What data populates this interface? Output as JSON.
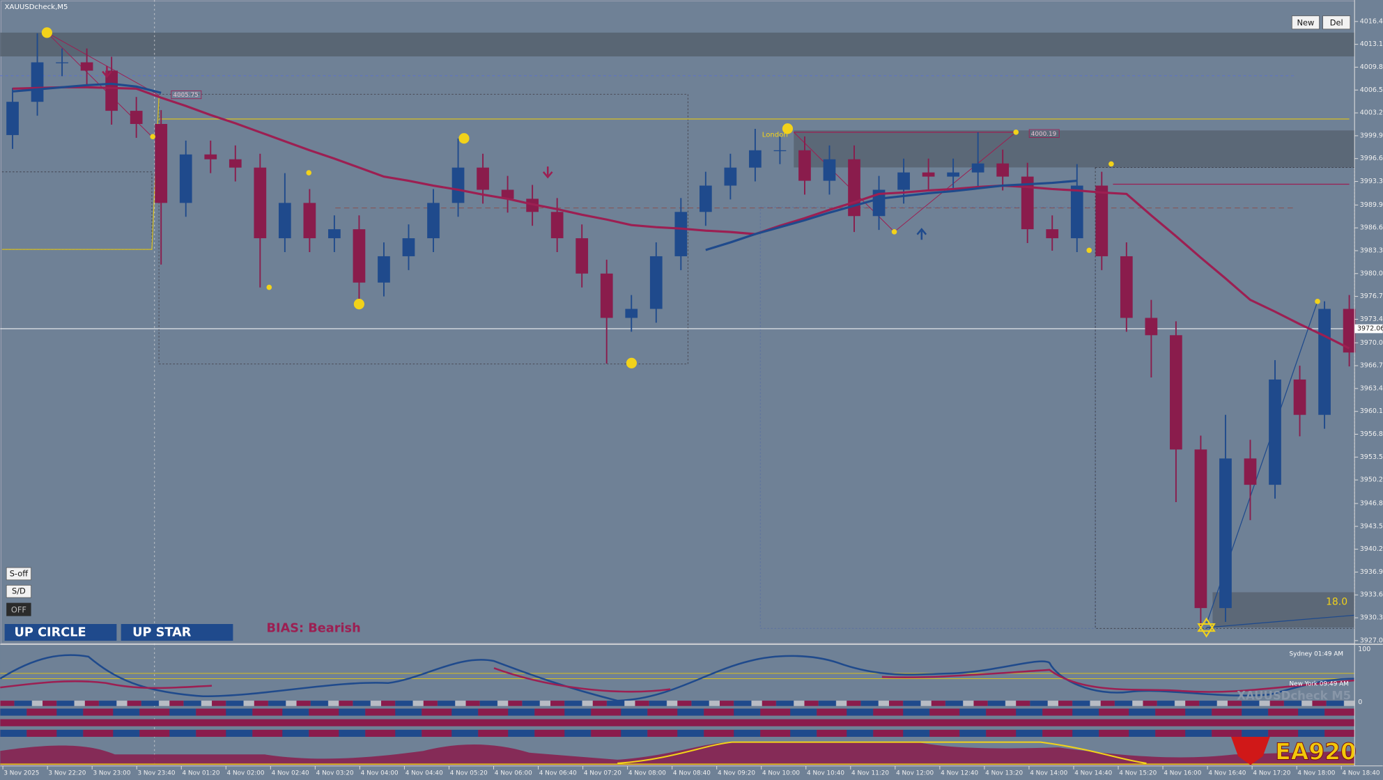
{
  "window": {
    "title": "XAUUSDcheck,M5",
    "new_button": "New",
    "del_button": "Del",
    "s_off": "S-off",
    "s_d": "S/D",
    "off": "OFF",
    "up_circle": "UP CIRCLE",
    "up_star": "UP STAR",
    "bias": "BIAS: Bearish",
    "box_value": "18.0",
    "price_tags": [
      "4005.75",
      "4000.19"
    ],
    "session_label": "London",
    "current_price": "3972.06",
    "sessions": [
      "Sydney 01:49 AM",
      "New York 09:49 AM"
    ],
    "watermark": "XAUUSDcheck M5",
    "logo": "EA920",
    "sub_axis": [
      "100",
      "0"
    ]
  },
  "chart_data": {
    "type": "candlestick",
    "up_color": "#1f4a8c",
    "down_color": "#8a1c4c",
    "ylim": [
      3926.6,
      4019.5
    ],
    "yticks": [
      {
        "value": 4016.4,
        "label": "4016.40"
      },
      {
        "value": 4013.1,
        "label": "4013.10"
      },
      {
        "value": 4009.8,
        "label": "4009.80"
      },
      {
        "value": 4006.5,
        "label": "4006.50"
      },
      {
        "value": 4003.2,
        "label": "4003.20"
      },
      {
        "value": 3999.9,
        "label": "3999.90"
      },
      {
        "value": 3996.6,
        "label": "3996.60"
      },
      {
        "value": 3993.3,
        "label": "3993.30"
      },
      {
        "value": 3989.9,
        "label": "3989.90"
      },
      {
        "value": 3986.6,
        "label": "3986.60"
      },
      {
        "value": 3983.3,
        "label": "3983.30"
      },
      {
        "value": 3980,
        "label": "3980.00"
      },
      {
        "value": 3976.7,
        "label": "3976.70"
      },
      {
        "value": 3973.4,
        "label": "3973.40"
      },
      {
        "value": 3970,
        "label": "3970.00"
      },
      {
        "value": 3966.7,
        "label": "3966.70"
      },
      {
        "value": 3963.4,
        "label": "3963.40"
      },
      {
        "value": 3960.1,
        "label": "3960.10"
      },
      {
        "value": 3956.8,
        "label": "3956.80"
      },
      {
        "value": 3953.5,
        "label": "3953.50"
      },
      {
        "value": 3950.2,
        "label": "3950.20"
      },
      {
        "value": 3946.8,
        "label": "3946.80"
      },
      {
        "value": 3943.5,
        "label": "3943.50"
      },
      {
        "value": 3940.2,
        "label": "3940.20"
      },
      {
        "value": 3936.9,
        "label": "3936.90"
      },
      {
        "value": 3933.6,
        "label": "3933.60"
      },
      {
        "value": 3930.3,
        "label": "3930.30"
      },
      {
        "value": 3927,
        "label": "3927.00"
      }
    ],
    "x_labels": [
      "3 Nov 2025",
      "3 Nov 22:20",
      "3 Nov 23:00",
      "3 Nov 23:40",
      "4 Nov 01:20",
      "4 Nov 02:00",
      "4 Nov 02:40",
      "4 Nov 03:20",
      "4 Nov 04:00",
      "4 Nov 04:40",
      "4 Nov 05:20",
      "4 Nov 06:00",
      "4 Nov 06:40",
      "4 Nov 07:20",
      "4 Nov 08:00",
      "4 Nov 08:40",
      "4 Nov 09:20",
      "4 Nov 10:00",
      "4 Nov 10:40",
      "4 Nov 11:20",
      "4 Nov 12:00",
      "4 Nov 12:40",
      "4 Nov 13:20",
      "4 Nov 14:00",
      "4 Nov 14:40",
      "4 Nov 15:20",
      "4 Nov 16:00",
      "4 Nov 16:40",
      "4 Nov 17:20",
      "4 Nov 18:00",
      "4 Nov 18:40"
    ],
    "open": [
      4000.0,
      4004.8,
      4010.5,
      4010.5,
      4009.3,
      4003.5,
      4001.6,
      3990.2,
      3997.2,
      3996.5,
      3995.3,
      3985.1,
      3990.2,
      3985.1,
      3986.4,
      3978.7,
      3982.5,
      3985.1,
      3990.2,
      3995.3,
      3992.1,
      3990.8,
      3988.9,
      3985.1,
      3980.0,
      3973.6,
      3974.9,
      3982.5,
      3988.9,
      3992.7,
      3995.3,
      3997.8,
      3997.8,
      3993.4,
      3996.5,
      3988.3,
      3992.1,
      3994.6,
      3994.0,
      3994.6,
      3995.9,
      3994.0,
      3986.4,
      3985.1,
      3992.7,
      3982.5,
      3973.6,
      3971.1,
      3954.6,
      3931.7,
      3953.3,
      3949.5,
      3964.7,
      3959.6,
      3974.9
    ],
    "high": [
      4006.8,
      4014.7,
      4012.5,
      4012.5,
      4011.3,
      4005.5,
      4003.6,
      3999.2,
      3999.2,
      3998.5,
      3997.3,
      3994.5,
      3992.2,
      3988.4,
      3988.4,
      3984.5,
      3987.1,
      3992.2,
      3999.5,
      3997.3,
      3994.1,
      3992.8,
      3990.9,
      3987.1,
      3982.0,
      3976.9,
      3984.5,
      3990.9,
      3994.7,
      3997.3,
      4000.9,
      3999.8,
      3999.8,
      3998.5,
      3998.5,
      3994.1,
      3996.6,
      3996.6,
      3996.6,
      4000.4,
      3997.9,
      3996.0,
      3988.4,
      3995.8,
      3994.7,
      3984.5,
      3976.2,
      3973.1,
      3956.6,
      3959.6,
      3956.0,
      3967.5,
      3966.7,
      3976.0,
      3976.9
    ],
    "low": [
      3998.0,
      4002.8,
      4008.5,
      4007.3,
      4001.5,
      3999.6,
      3981.3,
      3988.2,
      3994.5,
      3993.3,
      3978.0,
      3983.1,
      3983.1,
      3983.1,
      3975.6,
      3976.7,
      3980.5,
      3983.1,
      3988.2,
      3990.1,
      3988.8,
      3986.9,
      3983.1,
      3978.0,
      3967.0,
      3971.6,
      3972.9,
      3980.5,
      3986.9,
      3990.7,
      3993.3,
      3995.8,
      3991.4,
      3991.4,
      3986.0,
      3986.3,
      3990.1,
      3992.0,
      3992.0,
      3992.6,
      3992.0,
      3984.4,
      3983.3,
      3983.1,
      3980.5,
      3971.6,
      3965.0,
      3947.0,
      3929.1,
      3929.7,
      3944.4,
      3947.5,
      3956.5,
      3957.6,
      3966.6
    ],
    "close": [
      4004.8,
      4010.5,
      4010.5,
      4009.3,
      4003.5,
      4001.6,
      3990.2,
      3997.2,
      3996.5,
      3995.3,
      3985.1,
      3990.2,
      3985.1,
      3986.4,
      3978.7,
      3982.5,
      3985.1,
      3990.2,
      3995.3,
      3992.1,
      3990.8,
      3988.9,
      3985.1,
      3980.0,
      3973.6,
      3974.9,
      3982.5,
      3988.9,
      3992.7,
      3995.3,
      3997.8,
      3997.8,
      3993.4,
      3996.5,
      3988.3,
      3992.1,
      3994.6,
      3994.0,
      3994.6,
      3995.9,
      3994.0,
      3986.4,
      3985.1,
      3992.7,
      3982.5,
      3973.6,
      3971.1,
      3954.6,
      3931.7,
      3953.3,
      3949.5,
      3964.7,
      3959.6,
      3974.9,
      3968.6
    ],
    "ma_lines": [
      {
        "color": "#9c1f52",
        "values": [
          4006.7,
          4006.8,
          4006.9,
          4006.9,
          4006.8,
          4006.7,
          4005.4,
          4004.2,
          4002.9,
          4001.7,
          4000.4,
          3999.1,
          3997.8,
          3996.6,
          3995.3,
          3994.0,
          3993.4,
          3992.7,
          3992.1,
          3991.4,
          3990.8,
          3990.0,
          3989.3,
          3988.5,
          3987.8,
          3987.0,
          3986.7,
          3986.5,
          3986.2,
          3986.0,
          3985.7,
          3986.9,
          3988.0,
          3989.2,
          3990.3,
          3991.5,
          3991.7,
          3992.0,
          3992.2,
          3992.5,
          3992.7,
          3992.5,
          3992.2,
          3992.0,
          3991.7,
          3991.5,
          3988.4,
          3985.4,
          3982.3,
          3979.3,
          3976.2,
          3974.5,
          3972.7,
          3971.0,
          3969.2
        ]
      },
      {
        "color": "#1f4a8c",
        "values": [
          4006.3,
          4006.6,
          4006.9,
          4007.2,
          4007.4,
          4007.0,
          4006.1,
          null,
          null,
          null,
          null,
          null,
          null,
          null,
          null,
          null,
          null,
          null,
          null,
          null,
          null,
          null,
          null,
          null,
          null,
          null,
          null,
          null,
          3983.4,
          3984.5,
          3985.7,
          3986.7,
          3987.7,
          3988.8,
          3989.8,
          3990.8,
          3991.2,
          3991.6,
          3991.9,
          3992.3,
          3992.7,
          3992.9,
          3993.1,
          3993.4,
          null,
          null,
          null,
          null,
          null,
          null,
          null,
          null,
          null,
          null,
          null
        ]
      }
    ]
  }
}
